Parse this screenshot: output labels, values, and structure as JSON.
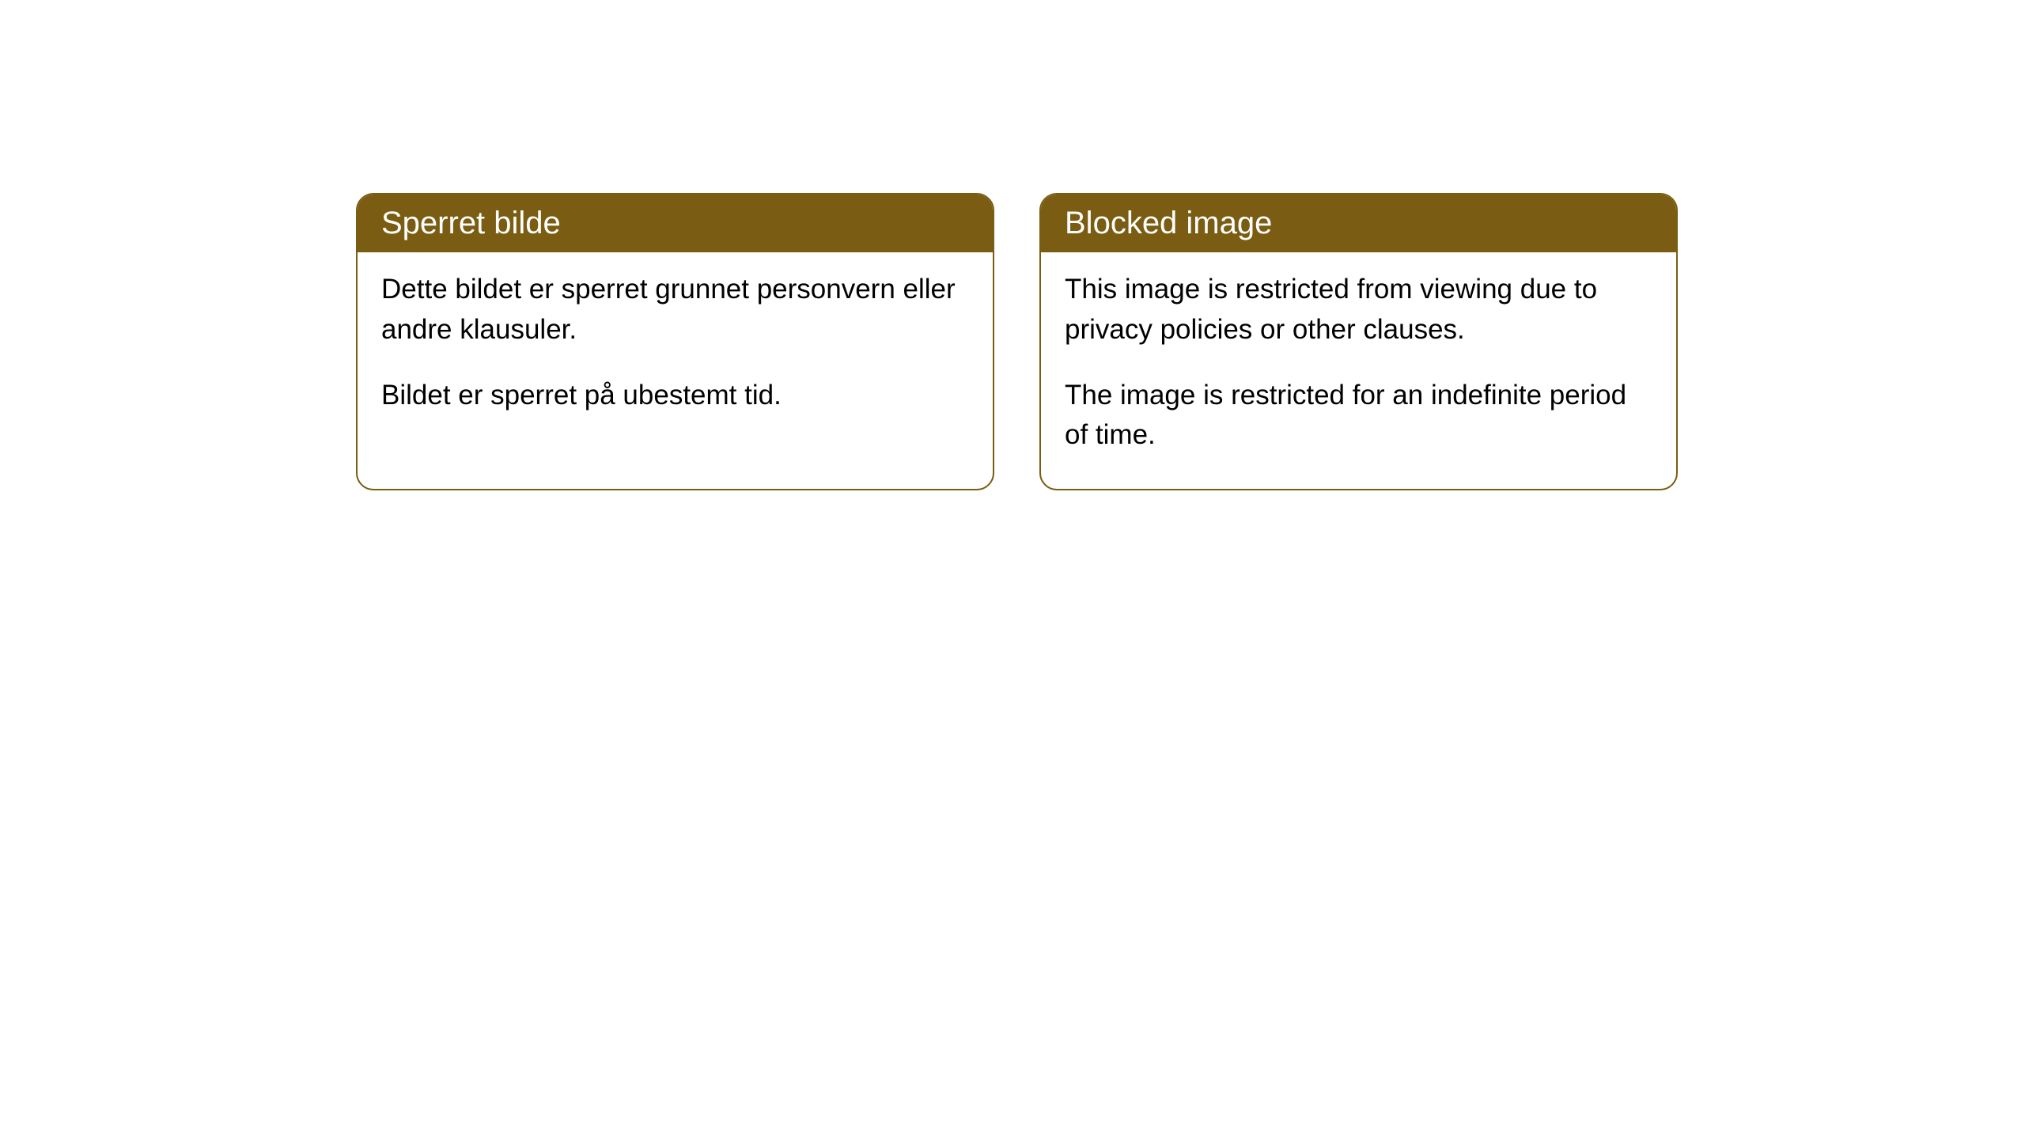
{
  "cards": [
    {
      "title": "Sperret bilde",
      "paragraph1": "Dette bildet er sperret grunnet personvern eller andre klausuler.",
      "paragraph2": "Bildet er sperret på ubestemt tid."
    },
    {
      "title": "Blocked image",
      "paragraph1": "This image is restricted from viewing due to privacy policies or other clauses.",
      "paragraph2": "The image is restricted for an indefinite period of time."
    }
  ],
  "style": {
    "header_background": "#7a5c12",
    "header_text_color": "#ffffff",
    "card_border_color": "#7a5c12",
    "card_background": "#ffffff",
    "body_text_color": "#000000",
    "border_radius": 22,
    "title_fontsize": 40,
    "body_fontsize": 35
  }
}
